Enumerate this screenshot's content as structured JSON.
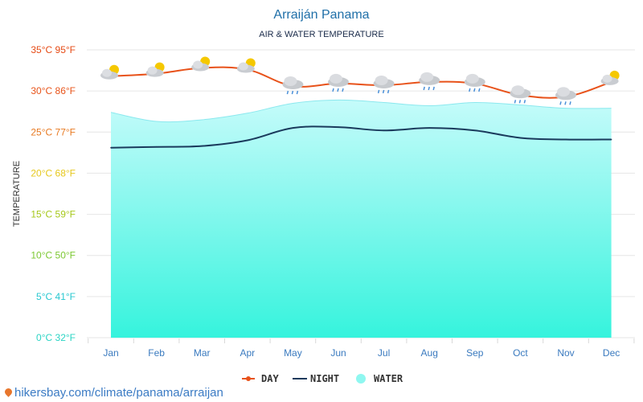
{
  "title": "Arraiján Panama",
  "subtitle": "AIR & WATER TEMPERATURE",
  "footer": "hikersbay.com/climate/panama/arraijan",
  "chart_data": {
    "type": "line",
    "title": "Arraiján Panama",
    "subtitle": "AIR & WATER TEMPERATURE",
    "ylabel": "TEMPERATURE",
    "xlabel": "",
    "categories": [
      "Jan",
      "Feb",
      "Mar",
      "Apr",
      "May",
      "Jun",
      "Jul",
      "Aug",
      "Sep",
      "Oct",
      "Nov",
      "Dec"
    ],
    "ylim": [
      0,
      35
    ],
    "yticks": [
      {
        "value": 0,
        "label": "0°C 32°F",
        "color": "#2bd4c4"
      },
      {
        "value": 5,
        "label": "5°C 41°F",
        "color": "#28c8d0"
      },
      {
        "value": 10,
        "label": "10°C 50°F",
        "color": "#7cc832"
      },
      {
        "value": 15,
        "label": "15°C 59°F",
        "color": "#a6c81a"
      },
      {
        "value": 20,
        "label": "20°C 68°F",
        "color": "#e6c81e"
      },
      {
        "value": 25,
        "label": "25°C 77°F",
        "color": "#e87a22"
      },
      {
        "value": 30,
        "label": "30°C 86°F",
        "color": "#e8541a"
      },
      {
        "value": 35,
        "label": "35°C 95°F",
        "color": "#e64a14"
      }
    ],
    "grid": true,
    "legend_position": "bottom",
    "series": [
      {
        "name": "DAY",
        "color": "#e8521a",
        "values": [
          31.8,
          32.1,
          32.8,
          32.6,
          30.6,
          30.9,
          30.7,
          31.1,
          30.9,
          29.5,
          29.3,
          31.1
        ]
      },
      {
        "name": "NIGHT",
        "color": "#1a3a5c",
        "values": [
          23.1,
          23.2,
          23.3,
          24.0,
          25.5,
          25.6,
          25.2,
          25.5,
          25.2,
          24.3,
          24.1,
          24.1
        ]
      },
      {
        "name": "WATER",
        "color": "#7ff5f0",
        "values": [
          27.4,
          26.3,
          26.5,
          27.3,
          28.5,
          28.9,
          28.6,
          28.2,
          28.6,
          28.3,
          27.9,
          27.9
        ]
      }
    ],
    "weather_icons": [
      "partly-sunny-icon",
      "partly-sunny-icon",
      "partly-sunny-icon",
      "partly-sunny-icon",
      "rain-cloud-icon",
      "rain-cloud-icon",
      "rain-cloud-icon",
      "rain-cloud-icon",
      "rain-cloud-icon",
      "rain-cloud-icon",
      "rain-cloud-icon",
      "partly-sunny-icon"
    ]
  }
}
